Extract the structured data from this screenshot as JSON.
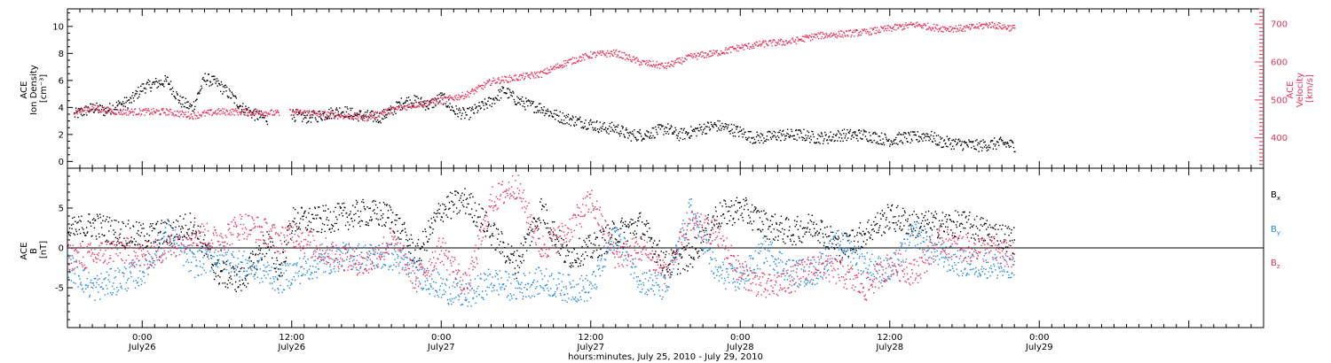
{
  "colors": {
    "black": "#000000",
    "red": "#e8345a",
    "blue": "#1e88e5"
  },
  "footer": {
    "xlabel": "hours:minutes, July 25, 2010 - July 29, 2010"
  },
  "time_axis": {
    "range_hours": [
      -6,
      90
    ],
    "ticks": [
      {
        "hour": 0,
        "time": "0:00",
        "date": "July26"
      },
      {
        "hour": 12,
        "time": "12:00",
        "date": "July26"
      },
      {
        "hour": 24,
        "time": "0:00",
        "date": "July27"
      },
      {
        "hour": 36,
        "time": "12:00",
        "date": "July27"
      },
      {
        "hour": 48,
        "time": "0:00",
        "date": "July28"
      },
      {
        "hour": 60,
        "time": "12:00",
        "date": "July28"
      },
      {
        "hour": 72,
        "time": "0:00",
        "date": "July29"
      }
    ]
  },
  "chart_data": [
    {
      "type": "scatter",
      "panel": "top",
      "ylabel_left": [
        "ACE",
        "Ion Density",
        "[cm⁻³]"
      ],
      "ylabel_right": [
        "ACE",
        "Velocity",
        "[km/s]"
      ],
      "ylim_left": [
        -0.5,
        11.3
      ],
      "ylim_right": [
        320,
        740
      ],
      "yticks_left": [
        "0",
        "2",
        "4",
        "6",
        "8",
        "10"
      ],
      "yticks_right": [
        "400",
        "500",
        "600",
        "700"
      ],
      "series": [
        {
          "axis": "left",
          "color": "#000000",
          "x": [
            -5.5,
            -4,
            -3,
            -2,
            -1,
            0,
            1,
            2,
            3,
            4,
            5,
            6,
            7,
            8,
            9,
            10,
            11,
            12,
            13,
            14,
            15,
            16,
            17,
            18,
            19,
            20,
            21,
            22,
            23,
            24,
            25,
            26,
            27,
            28,
            29,
            30,
            31,
            32,
            33,
            34,
            35,
            36,
            37,
            38,
            39,
            40,
            41,
            42,
            43,
            44,
            45,
            46,
            47,
            48,
            49,
            50,
            51,
            52,
            53,
            54,
            55,
            56,
            57,
            58,
            59,
            60,
            61,
            62,
            63,
            64,
            65,
            66,
            67,
            68,
            69,
            70
          ],
          "y": [
            3.5,
            4,
            3.8,
            4.2,
            4.5,
            5.5,
            5.8,
            6,
            4.5,
            4,
            6.2,
            5.8,
            5,
            4,
            3.5,
            3.2,
            null,
            3.5,
            3.3,
            3.4,
            3.6,
            3.8,
            3.5,
            3.4,
            3.3,
            3.8,
            4.5,
            4.5,
            4.2,
            4.8,
            3.8,
            3.5,
            4,
            4.5,
            5.3,
            4.6,
            4.2,
            4,
            3.5,
            3.2,
            3,
            2.8,
            2.5,
            2.5,
            2,
            2,
            2.2,
            2.5,
            2,
            2.2,
            2.5,
            2.7,
            2.5,
            2.2,
            1.8,
            1.8,
            2,
            2,
            2,
            1.8,
            1.8,
            2,
            2,
            2,
            1.8,
            1.6,
            1.8,
            1.8,
            2,
            1.5,
            1.4,
            1.3,
            1.2,
            1.3,
            1.4,
            1.2
          ],
          "gaps_after_hour": [
            10.5
          ]
        },
        {
          "axis": "right",
          "color": "#e8345a",
          "x": [
            -5.5,
            -4,
            -2,
            0,
            2,
            4,
            6,
            8,
            10,
            11,
            12,
            14,
            16,
            18,
            20,
            22,
            24,
            26,
            28,
            30,
            32,
            34,
            36,
            38,
            40,
            42,
            44,
            46,
            48,
            50,
            52,
            54,
            56,
            58,
            60,
            62,
            64,
            66,
            68,
            70
          ],
          "y": [
            470,
            480,
            470,
            470,
            470,
            460,
            470,
            470,
            468,
            465,
            470,
            465,
            460,
            455,
            475,
            490,
            500,
            515,
            550,
            560,
            570,
            600,
            620,
            625,
            600,
            590,
            615,
            625,
            640,
            650,
            655,
            670,
            675,
            680,
            690,
            700,
            690,
            690,
            700,
            690
          ],
          "gaps_after_hour": [
            11
          ]
        }
      ]
    },
    {
      "type": "scatter",
      "panel": "bottom",
      "ylabel": [
        "ACE",
        "B",
        "[nT]"
      ],
      "ylim": [
        -10,
        10
      ],
      "yticks": [
        "-5",
        "0",
        "5"
      ],
      "series": [
        {
          "name": "Bx",
          "color": "#000000",
          "x": [
            -6,
            -4,
            -2,
            0,
            2,
            4,
            6,
            8,
            10,
            11,
            12,
            14,
            16,
            18,
            20,
            22,
            24,
            26,
            28,
            30,
            32,
            34,
            36,
            38,
            40,
            42,
            44,
            46,
            48,
            50,
            52,
            54,
            56,
            58,
            60,
            62,
            64,
            66,
            68,
            70
          ],
          "y": [
            2,
            3,
            2,
            1.5,
            2,
            3,
            -3,
            -4,
            1,
            -3,
            3.5,
            3.5,
            4,
            4.5,
            4,
            -1,
            5,
            6,
            2,
            -2,
            5,
            -1,
            0,
            2,
            3,
            -2,
            -1,
            4,
            5,
            3,
            2,
            3,
            0,
            2,
            4,
            3,
            3,
            3,
            2,
            1
          ]
        },
        {
          "name": "By",
          "color": "#1e88e5",
          "x": [
            -6,
            -4,
            -2,
            0,
            2,
            4,
            6,
            8,
            10,
            11,
            12,
            14,
            16,
            18,
            20,
            22,
            24,
            26,
            28,
            30,
            32,
            34,
            36,
            38,
            40,
            42,
            44,
            46,
            48,
            50,
            52,
            54,
            56,
            58,
            60,
            62,
            64,
            66,
            68,
            70
          ],
          "y": [
            -2,
            -5,
            -4,
            -3,
            2,
            -2,
            -1,
            -2,
            -3,
            -4,
            -3,
            -2,
            -1,
            -1,
            -1,
            -3,
            -5,
            -6,
            -4,
            -5,
            -4,
            -5,
            -5,
            2,
            -4,
            -5,
            5,
            -3,
            -4,
            0,
            -3,
            -3,
            1,
            -2,
            -3,
            2,
            -1,
            -2,
            -2,
            -3
          ]
        },
        {
          "name": "Bz",
          "color": "#e8345a",
          "x": [
            -6,
            -4,
            -2,
            0,
            2,
            4,
            6,
            8,
            10,
            11,
            12,
            14,
            16,
            18,
            20,
            22,
            24,
            26,
            28,
            30,
            32,
            34,
            36,
            38,
            40,
            42,
            44,
            46,
            48,
            50,
            52,
            54,
            56,
            58,
            60,
            62,
            64,
            66,
            68,
            70
          ],
          "y": [
            -1,
            -1,
            0,
            -1,
            0,
            2,
            1,
            3,
            2,
            1,
            2,
            0,
            -1,
            -2,
            1,
            -4,
            0,
            -5,
            6,
            8,
            0,
            2,
            6,
            -1,
            0,
            -3,
            3,
            2,
            -3,
            -5,
            -4,
            -2,
            -3,
            -5,
            -2,
            -3,
            1,
            0,
            0,
            -1
          ]
        }
      ]
    }
  ]
}
